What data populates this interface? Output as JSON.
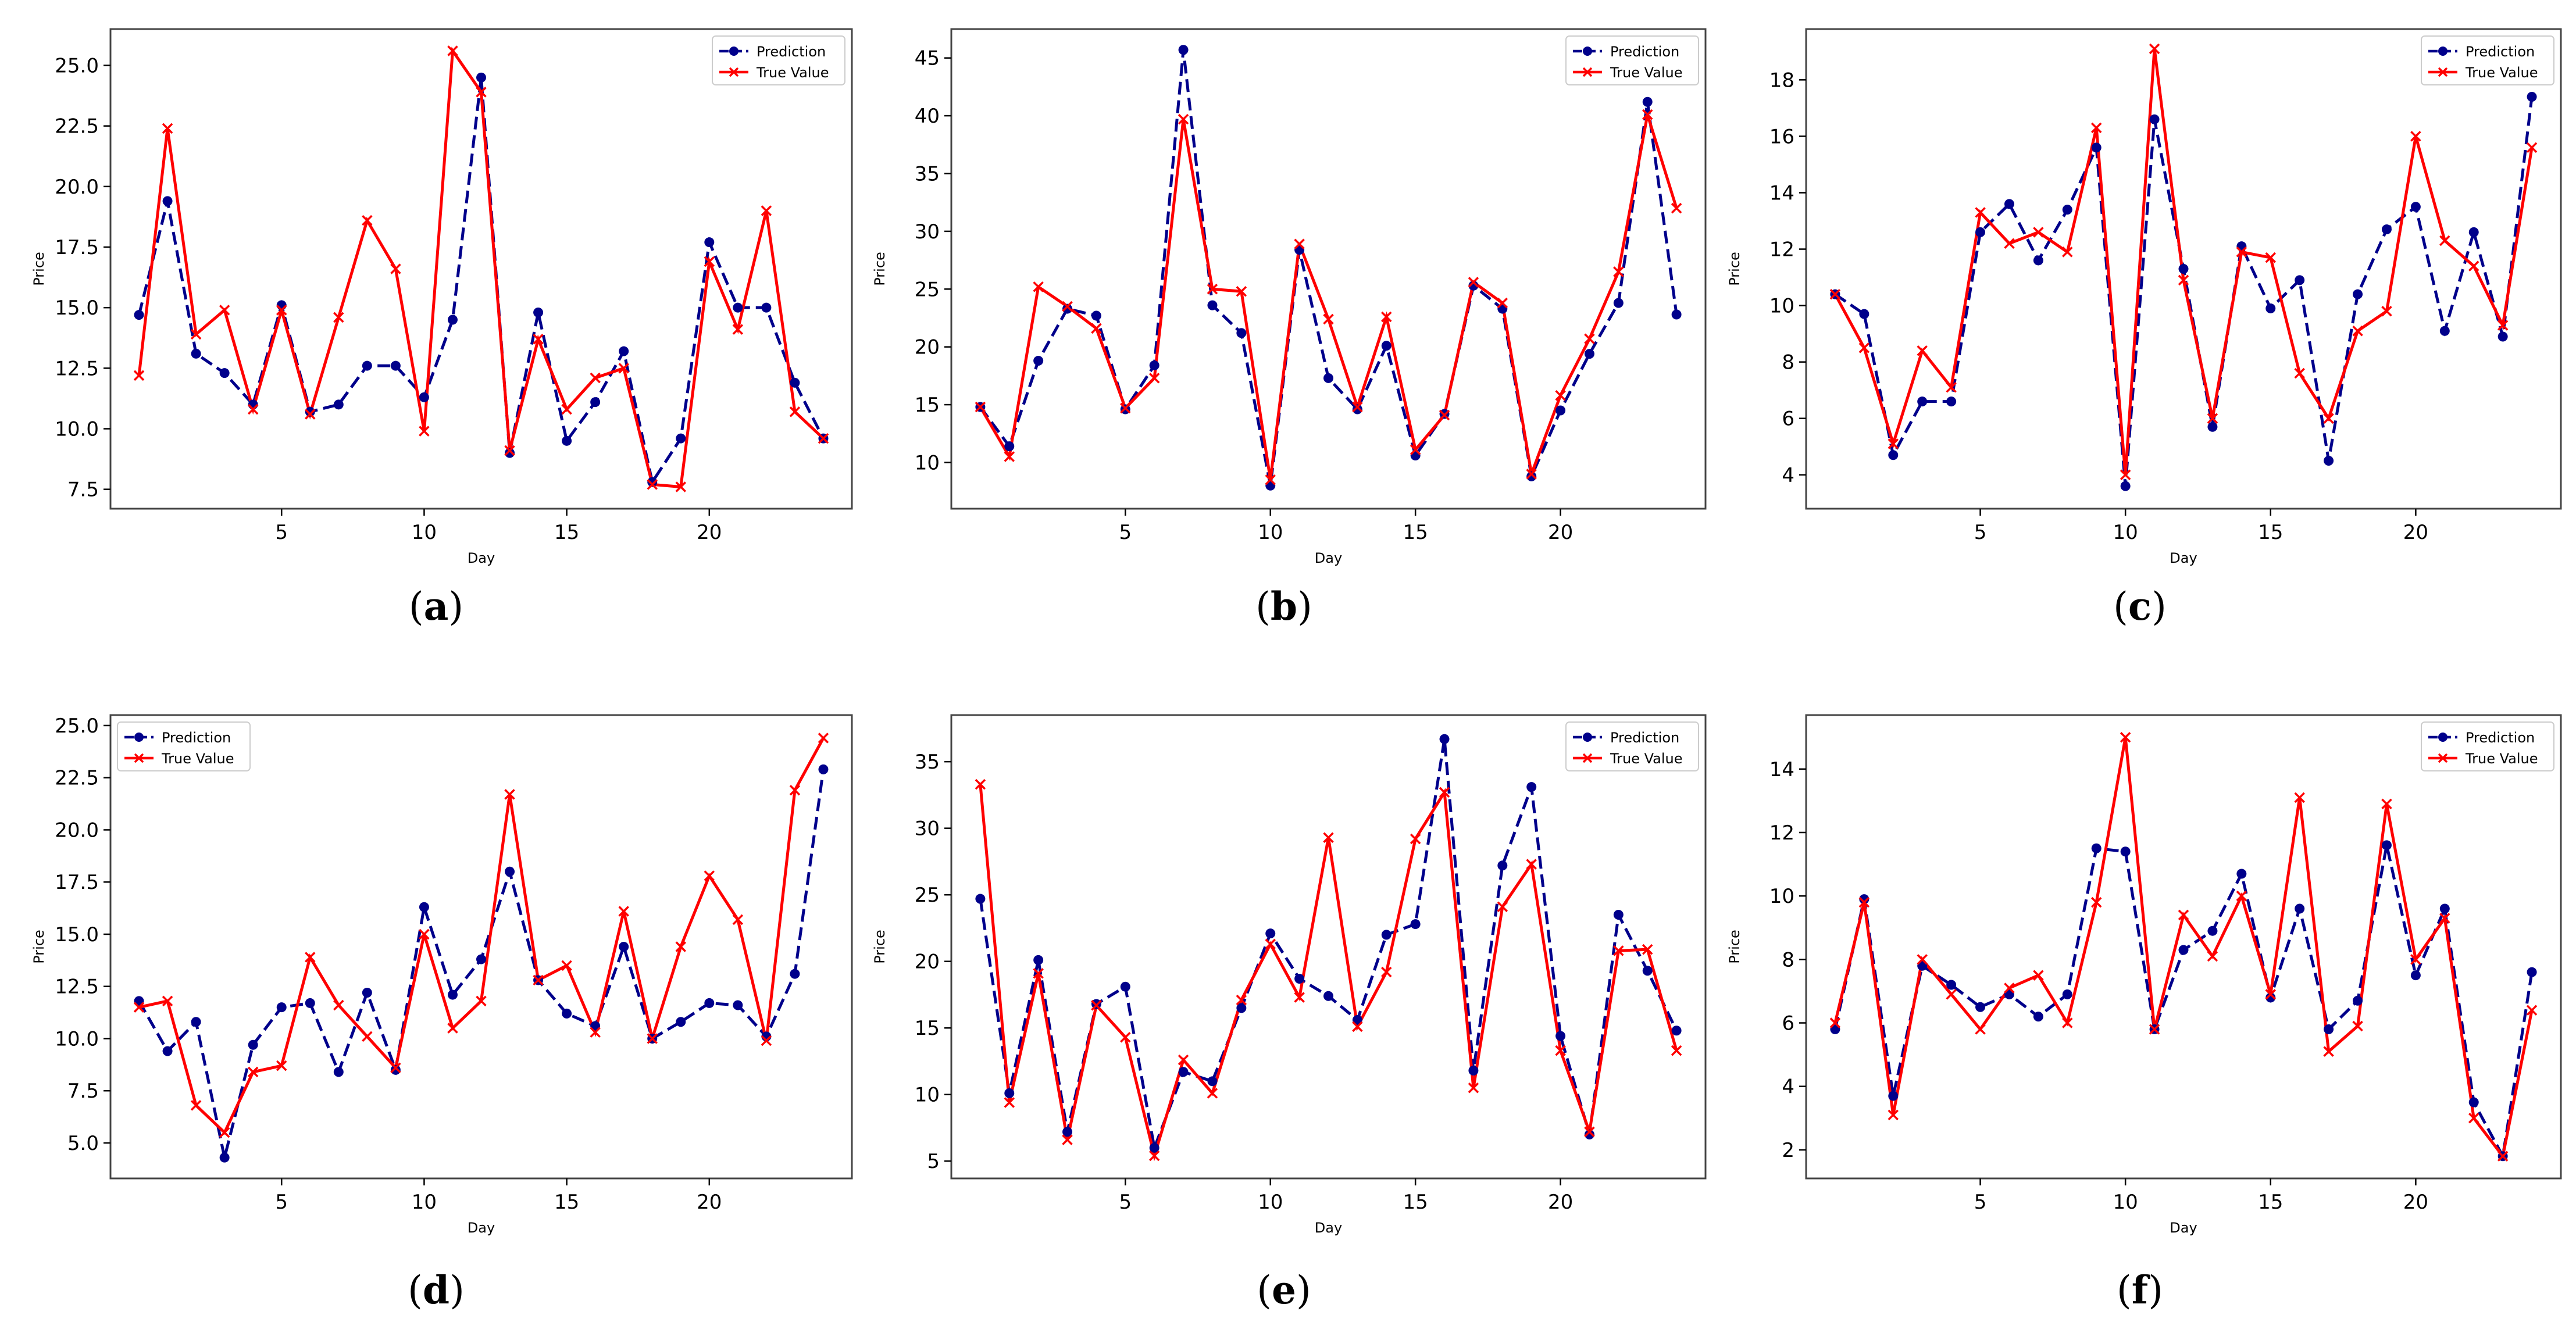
{
  "chart_data": [
    {
      "type": "line",
      "panel": "a",
      "xlabel": "Day",
      "ylabel": "Price",
      "xlim": [
        -1,
        25
      ],
      "ylim": [
        6.7,
        26.5
      ],
      "xticks": [
        5,
        10,
        15,
        20
      ],
      "yticks": [
        7.5,
        10.0,
        12.5,
        15.0,
        17.5,
        20.0,
        22.5,
        25.0
      ],
      "ytick_labels": [
        "7.5",
        "10.0",
        "12.5",
        "15.0",
        "17.5",
        "20.0",
        "22.5",
        "25.0"
      ],
      "legend_loc": "upper right",
      "x": [
        0,
        1,
        2,
        3,
        4,
        5,
        6,
        7,
        8,
        9,
        10,
        11,
        12,
        13,
        14,
        15,
        16,
        17,
        18,
        19,
        20,
        21,
        22,
        23,
        24
      ],
      "series": [
        {
          "name": "Prediction",
          "style": "dashed-dot",
          "values": [
            14.7,
            19.4,
            13.1,
            12.3,
            11.0,
            15.1,
            10.7,
            11.0,
            12.6,
            12.6,
            11.3,
            14.5,
            24.5,
            9.0,
            14.8,
            9.5,
            11.1,
            13.2,
            7.8,
            9.6,
            17.7,
            15.0,
            15.0,
            11.9,
            9.6
          ]
        },
        {
          "name": "True Value",
          "style": "solid-x",
          "values": [
            12.2,
            22.4,
            13.9,
            14.9,
            10.8,
            14.9,
            10.6,
            14.6,
            18.6,
            16.6,
            9.9,
            25.6,
            23.9,
            9.1,
            13.7,
            10.8,
            12.1,
            12.5,
            7.7,
            7.6,
            16.9,
            14.1,
            19.0,
            10.7,
            9.6
          ]
        }
      ]
    },
    {
      "type": "line",
      "panel": "b",
      "xlabel": "Day",
      "ylabel": "Price",
      "xlim": [
        -1,
        25
      ],
      "ylim": [
        6.0,
        47.5
      ],
      "xticks": [
        5,
        10,
        15,
        20
      ],
      "yticks": [
        10,
        15,
        20,
        25,
        30,
        35,
        40,
        45
      ],
      "ytick_labels": [
        "10",
        "15",
        "20",
        "25",
        "30",
        "35",
        "40",
        "45"
      ],
      "legend_loc": "upper right",
      "x": [
        0,
        1,
        2,
        3,
        4,
        5,
        6,
        7,
        8,
        9,
        10,
        11,
        12,
        13,
        14,
        15,
        16,
        17,
        18,
        19,
        20,
        21,
        22,
        23,
        24
      ],
      "series": [
        {
          "name": "Prediction",
          "style": "dashed-dot",
          "values": [
            14.8,
            11.4,
            18.8,
            23.3,
            22.7,
            14.6,
            18.4,
            45.7,
            23.6,
            21.2,
            8.0,
            28.4,
            17.3,
            14.6,
            20.1,
            10.6,
            14.2,
            25.3,
            23.3,
            8.8,
            14.5,
            19.4,
            23.8,
            41.2,
            22.8
          ]
        },
        {
          "name": "True Value",
          "style": "solid-x",
          "values": [
            14.8,
            10.5,
            25.2,
            23.5,
            21.6,
            14.7,
            17.3,
            39.7,
            25.0,
            24.8,
            8.5,
            28.9,
            22.4,
            14.8,
            22.6,
            11.1,
            14.1,
            25.6,
            23.8,
            9.0,
            15.8,
            20.7,
            26.5,
            40.1,
            32.0
          ]
        }
      ]
    },
    {
      "type": "line",
      "panel": "c",
      "xlabel": "Day",
      "ylabel": "Price",
      "xlim": [
        -1,
        25
      ],
      "ylim": [
        2.8,
        19.8
      ],
      "xticks": [
        5,
        10,
        15,
        20
      ],
      "yticks": [
        4,
        6,
        8,
        10,
        12,
        14,
        16,
        18
      ],
      "ytick_labels": [
        "4",
        "6",
        "8",
        "10",
        "12",
        "14",
        "16",
        "18"
      ],
      "legend_loc": "upper right",
      "x": [
        0,
        1,
        2,
        3,
        4,
        5,
        6,
        7,
        8,
        9,
        10,
        11,
        12,
        13,
        14,
        15,
        16,
        17,
        18,
        19,
        20,
        21,
        22,
        23,
        24
      ],
      "series": [
        {
          "name": "Prediction",
          "style": "dashed-dot",
          "values": [
            10.4,
            9.7,
            4.7,
            6.6,
            6.6,
            12.6,
            13.6,
            11.6,
            13.4,
            15.6,
            3.6,
            16.6,
            11.3,
            5.7,
            12.1,
            9.9,
            10.9,
            4.5,
            10.4,
            12.7,
            13.5,
            9.1,
            12.6,
            8.9,
            17.4
          ]
        },
        {
          "name": "True Value",
          "style": "solid-x",
          "values": [
            10.4,
            8.5,
            5.1,
            8.4,
            7.1,
            13.3,
            12.2,
            12.6,
            11.9,
            16.3,
            4.0,
            19.1,
            10.9,
            6.0,
            11.9,
            11.7,
            7.6,
            6.0,
            9.1,
            9.8,
            16.0,
            12.3,
            11.4,
            9.3,
            15.6
          ]
        }
      ]
    },
    {
      "type": "line",
      "panel": "d",
      "xlabel": "Day",
      "ylabel": "Price",
      "xlim": [
        -1,
        25
      ],
      "ylim": [
        3.3,
        25.5
      ],
      "xticks": [
        5,
        10,
        15,
        20
      ],
      "yticks": [
        5.0,
        7.5,
        10.0,
        12.5,
        15.0,
        17.5,
        20.0,
        22.5,
        25.0
      ],
      "ytick_labels": [
        "5.0",
        "7.5",
        "10.0",
        "12.5",
        "15.0",
        "17.5",
        "20.0",
        "22.5",
        "25.0"
      ],
      "legend_loc": "upper left",
      "x": [
        0,
        1,
        2,
        3,
        4,
        5,
        6,
        7,
        8,
        9,
        10,
        11,
        12,
        13,
        14,
        15,
        16,
        17,
        18,
        19,
        20,
        21,
        22,
        23,
        24
      ],
      "series": [
        {
          "name": "Prediction",
          "style": "dashed-dot",
          "values": [
            11.8,
            9.4,
            10.8,
            4.3,
            9.7,
            11.5,
            11.7,
            8.4,
            12.2,
            8.5,
            16.3,
            12.1,
            13.8,
            18.0,
            12.8,
            11.2,
            10.6,
            14.4,
            10.0,
            10.8,
            11.7,
            11.6,
            10.1,
            13.1,
            22.9
          ]
        },
        {
          "name": "True Value",
          "style": "solid-x",
          "values": [
            11.5,
            11.8,
            6.8,
            5.5,
            8.4,
            8.7,
            13.9,
            11.6,
            10.1,
            8.6,
            15.0,
            10.5,
            11.8,
            21.7,
            12.8,
            13.5,
            10.3,
            16.1,
            10.0,
            14.4,
            17.8,
            15.7,
            9.9,
            21.9,
            24.4
          ]
        }
      ]
    },
    {
      "type": "line",
      "panel": "e",
      "xlabel": "Day",
      "ylabel": "Price",
      "xlim": [
        -1,
        25
      ],
      "ylim": [
        3.7,
        38.5
      ],
      "xticks": [
        5,
        10,
        15,
        20
      ],
      "yticks": [
        5,
        10,
        15,
        20,
        25,
        30,
        35
      ],
      "ytick_labels": [
        "5",
        "10",
        "15",
        "20",
        "25",
        "30",
        "35"
      ],
      "legend_loc": "upper right",
      "x": [
        0,
        1,
        2,
        3,
        4,
        5,
        6,
        7,
        8,
        9,
        10,
        11,
        12,
        13,
        14,
        15,
        16,
        17,
        18,
        19,
        20,
        21,
        22,
        23,
        24
      ],
      "series": [
        {
          "name": "Prediction",
          "style": "dashed-dot",
          "values": [
            24.7,
            10.1,
            20.1,
            7.2,
            16.8,
            18.1,
            6.0,
            11.7,
            11.0,
            16.5,
            22.1,
            18.7,
            17.4,
            15.6,
            22.0,
            22.8,
            36.7,
            11.8,
            27.2,
            33.1,
            14.4,
            7.0,
            23.5,
            19.3,
            14.8
          ]
        },
        {
          "name": "True Value",
          "style": "solid-x",
          "values": [
            33.3,
            9.4,
            19.1,
            6.6,
            16.7,
            14.3,
            5.4,
            12.6,
            10.1,
            17.1,
            21.3,
            17.3,
            29.3,
            15.1,
            19.2,
            29.2,
            32.7,
            10.5,
            24.1,
            27.3,
            13.3,
            7.2,
            20.8,
            20.9,
            13.3
          ]
        }
      ]
    },
    {
      "type": "line",
      "panel": "f",
      "xlabel": "Day",
      "ylabel": "Price",
      "xlim": [
        -1,
        25
      ],
      "ylim": [
        1.1,
        15.7
      ],
      "xticks": [
        5,
        10,
        15,
        20
      ],
      "yticks": [
        2,
        4,
        6,
        8,
        10,
        12,
        14
      ],
      "ytick_labels": [
        "2",
        "4",
        "6",
        "8",
        "10",
        "12",
        "14"
      ],
      "legend_loc": "upper right",
      "x": [
        0,
        1,
        2,
        3,
        4,
        5,
        6,
        7,
        8,
        9,
        10,
        11,
        12,
        13,
        14,
        15,
        16,
        17,
        18,
        19,
        20,
        21,
        22,
        23,
        24
      ],
      "series": [
        {
          "name": "Prediction",
          "style": "dashed-dot",
          "values": [
            5.8,
            9.9,
            3.7,
            7.8,
            7.2,
            6.5,
            6.9,
            6.2,
            6.9,
            11.5,
            11.4,
            5.8,
            8.3,
            8.9,
            10.7,
            6.8,
            9.6,
            5.8,
            6.7,
            11.6,
            7.5,
            9.6,
            3.5,
            1.8,
            7.6
          ]
        },
        {
          "name": "True Value",
          "style": "solid-x",
          "values": [
            6.0,
            9.8,
            3.1,
            8.0,
            6.9,
            5.8,
            7.1,
            7.5,
            6.0,
            9.8,
            15.0,
            5.8,
            9.4,
            8.1,
            10.0,
            6.9,
            13.1,
            5.1,
            5.9,
            12.9,
            8.0,
            9.3,
            3.0,
            1.8,
            6.4
          ]
        }
      ]
    }
  ],
  "captions": [
    "(a)",
    "(b)",
    "(c)",
    "(d)",
    "(e)",
    "(f)"
  ],
  "colors": {
    "prediction": "#00008b",
    "true_value": "#ff0000",
    "axis": "#000000",
    "frame": "#444444"
  }
}
